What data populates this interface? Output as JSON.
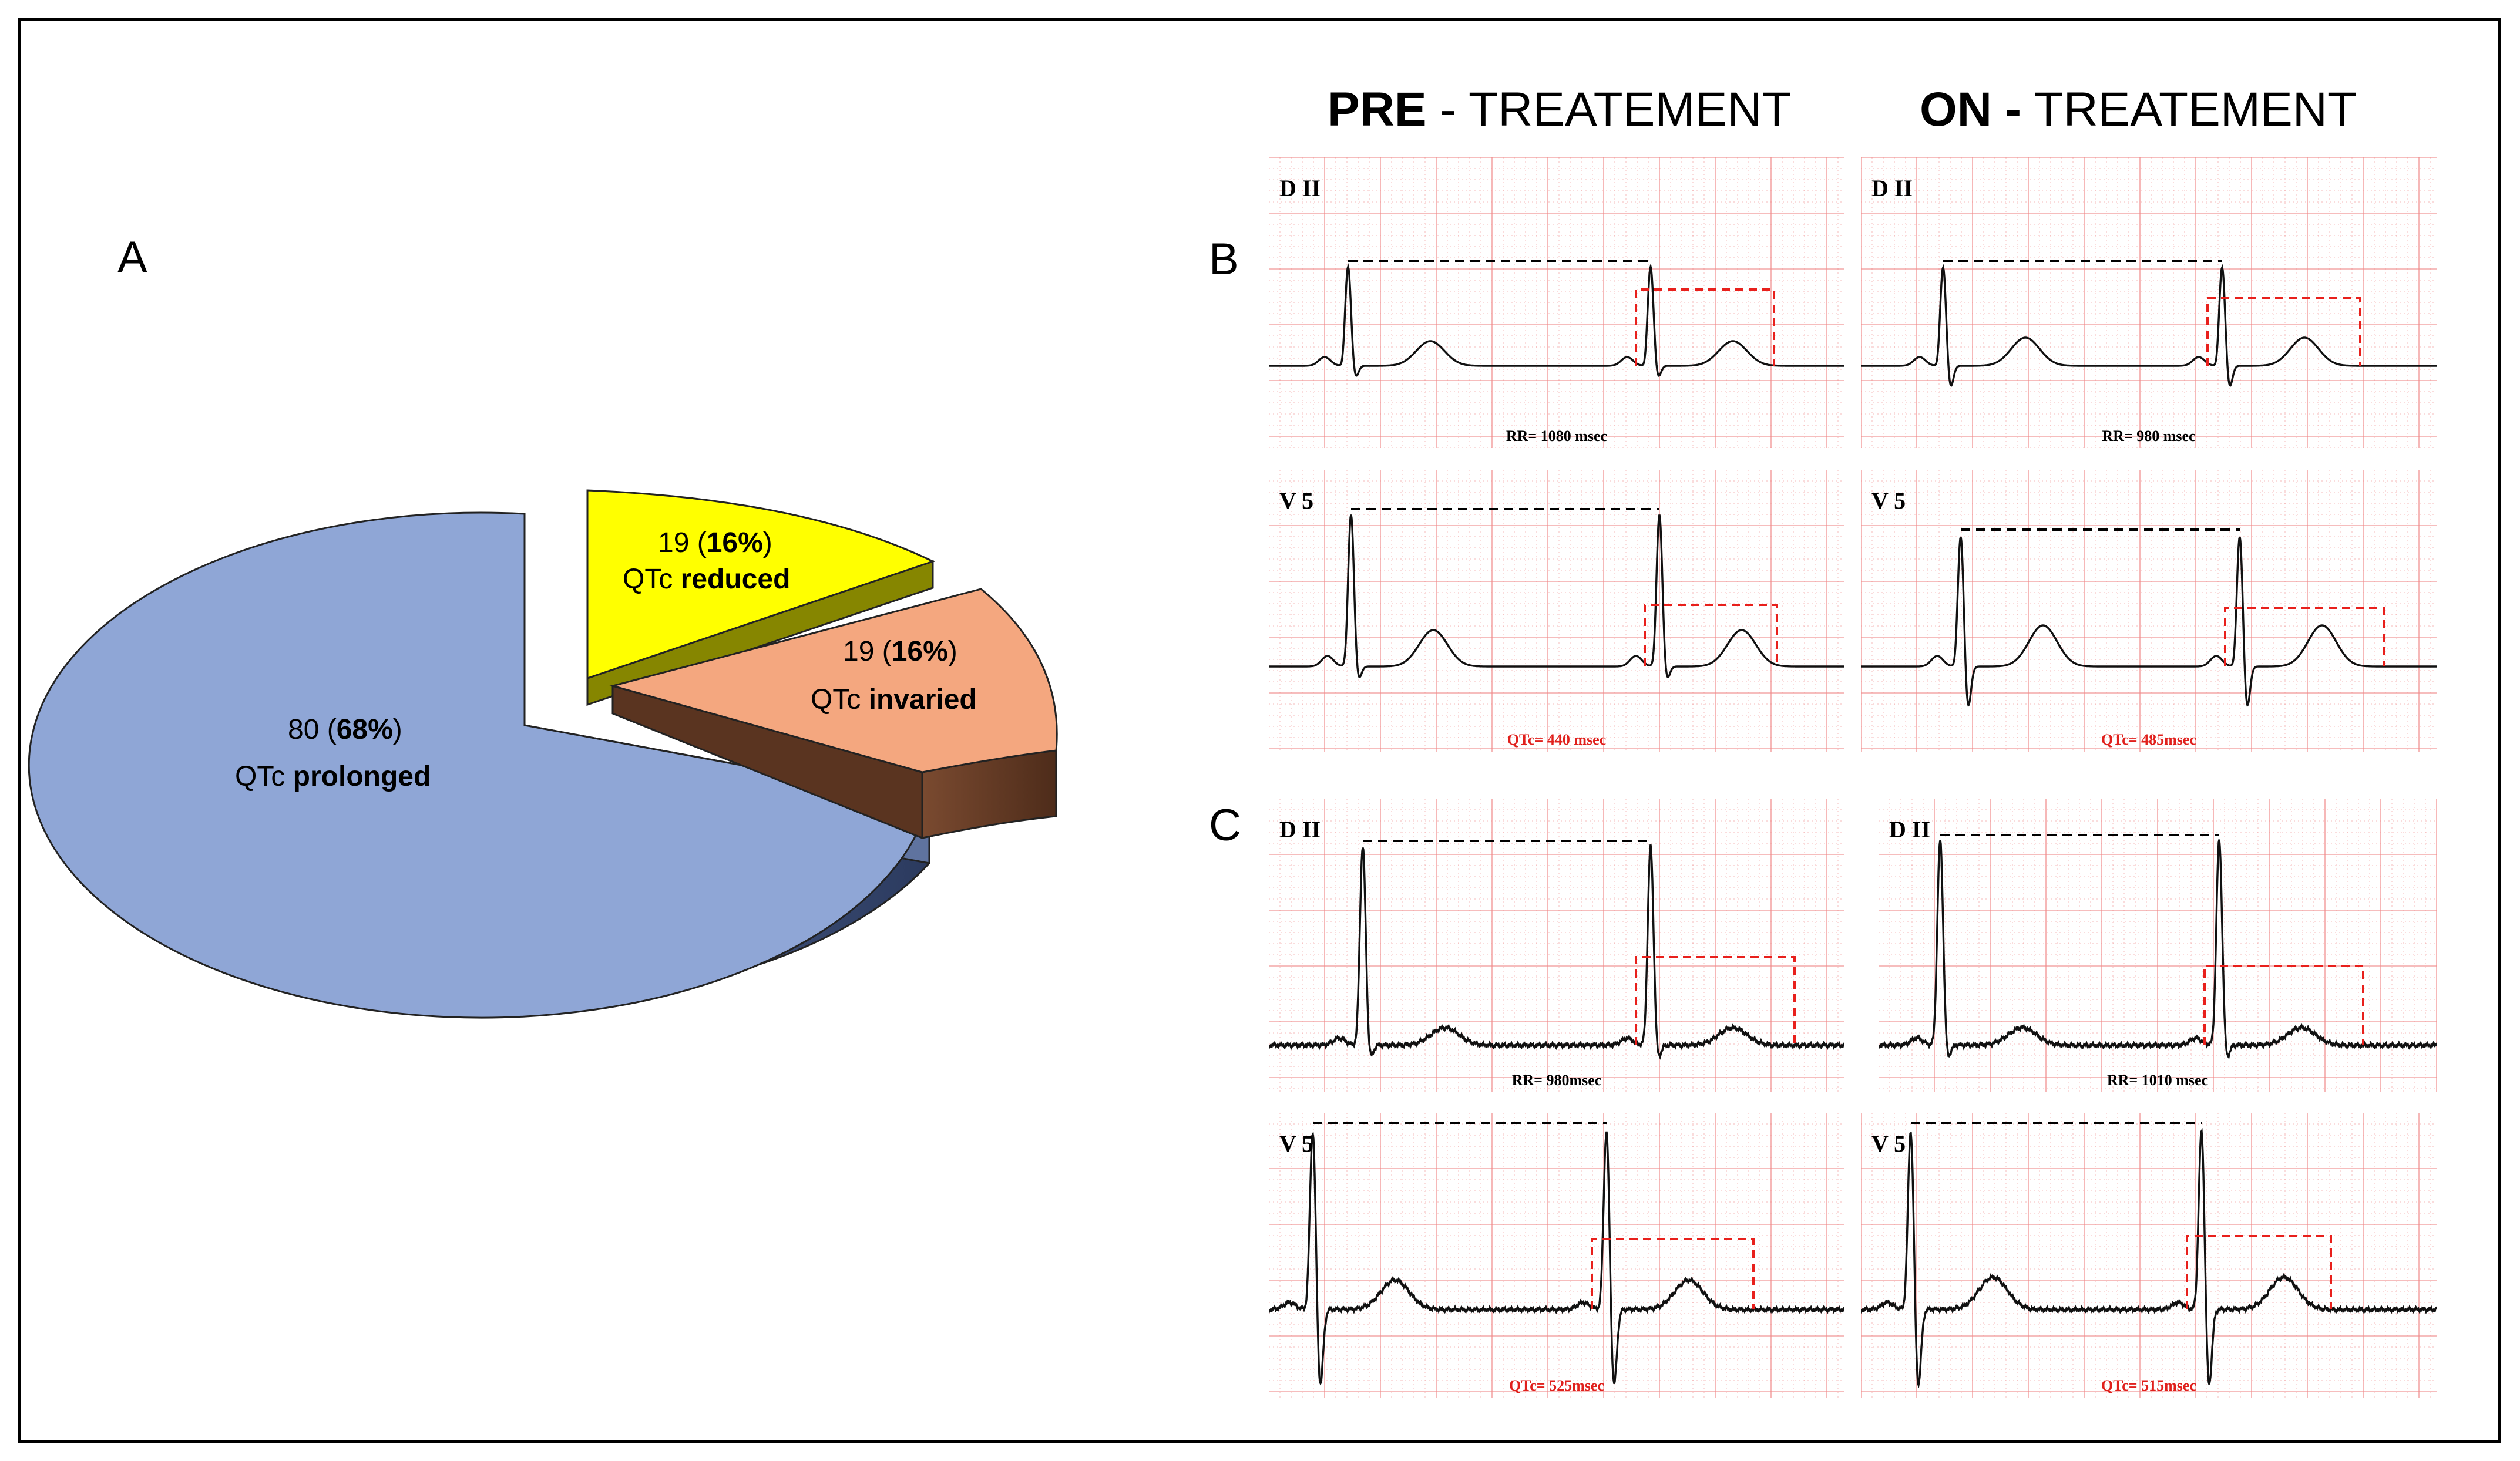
{
  "panels": {
    "a": "A",
    "b": "B",
    "c": "C"
  },
  "headers": {
    "pre_bold": "PRE",
    "pre_rest": " - TREATEMENT",
    "on_bold": "ON -",
    "on_rest": " TREATEMENT"
  },
  "chart_data": {
    "type": "pie",
    "style": "3d-exploded",
    "slices": [
      {
        "label": "QTc prolonged",
        "count": 80,
        "percent": 68,
        "label_prefix": "QTc ",
        "label_bold": "prolonged",
        "count_text": "80",
        "percent_text": "68%",
        "color": "#8fa6d6"
      },
      {
        "label": "QTc reduced",
        "count": 19,
        "percent": 16,
        "label_prefix": "QTc ",
        "label_bold": "reduced",
        "count_text": "19",
        "percent_text": "16%",
        "color": "#ffff00"
      },
      {
        "label": "QTc invaried",
        "count": 19,
        "percent": 16,
        "label_prefix": "QTc ",
        "label_bold": "invaried",
        "count_text": "19",
        "percent_text": "16%",
        "color": "#f4a77f"
      }
    ]
  },
  "ecg": {
    "b": {
      "pre": {
        "lead_top": "D II",
        "lead_bottom": "V 5",
        "rr": "RR= 1080 msec",
        "qtc": "QTc= 440 msec"
      },
      "on": {
        "lead_top": "D II",
        "lead_bottom": "V 5",
        "rr": "RR= 980 msec",
        "qtc": "QTc= 485msec"
      }
    },
    "c": {
      "pre": {
        "lead_top": "D II",
        "lead_bottom": "V 5",
        "rr": "RR= 980msec",
        "qtc": "QTc= 525msec"
      },
      "on": {
        "lead_top": "D II",
        "lead_bottom": "V 5",
        "rr": "RR= 1010 msec",
        "qtc": "QTc= 515msec"
      }
    }
  },
  "colors": {
    "grid": "#f08a8a",
    "trace": "#111111",
    "qt_marker": "#e8201c",
    "rr_marker": "#000000",
    "label_red": "#e0201c"
  }
}
